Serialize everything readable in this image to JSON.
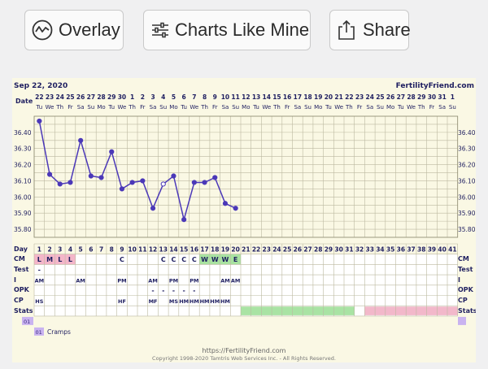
{
  "toolbar": {
    "overlay_label": "Overlay",
    "charts_like_mine_label": "Charts Like Mine",
    "share_label": "Share"
  },
  "header": {
    "start_date": "Sep 22, 2020",
    "site": "FertilityFriend.com"
  },
  "row_labels": {
    "date": "Date",
    "day": "Day",
    "cm": "CM",
    "test": "Test",
    "i": "I",
    "opk": "OPK",
    "cp": "CP",
    "stats": "Stats"
  },
  "dates": [
    "22",
    "23",
    "24",
    "25",
    "26",
    "27",
    "28",
    "29",
    "30",
    "1",
    "2",
    "3",
    "4",
    "5",
    "6",
    "7",
    "8",
    "9",
    "10",
    "11",
    "12",
    "13",
    "14",
    "15",
    "16",
    "17",
    "18",
    "19",
    "20",
    "21",
    "22",
    "23",
    "24",
    "25",
    "26",
    "27",
    "28",
    "29",
    "30",
    "31",
    "1"
  ],
  "weekdays": [
    "Tu",
    "We",
    "Th",
    "Fr",
    "Sa",
    "Su",
    "Mo",
    "Tu",
    "We",
    "Th",
    "Fr",
    "Sa",
    "Su",
    "Mo",
    "Tu",
    "We",
    "Th",
    "Fr",
    "Sa",
    "Su",
    "Mo",
    "Tu",
    "We",
    "Th",
    "Fr",
    "Sa",
    "Su",
    "Mo",
    "Tu",
    "We",
    "Th",
    "Fr",
    "Sa",
    "Su",
    "Mo",
    "Tu",
    "We",
    "Th",
    "Fr",
    "Sa",
    "Su"
  ],
  "y_ticks": [
    "36.40",
    "36.30",
    "36.20",
    "36.10",
    "36.00",
    "35.90",
    "35.80"
  ],
  "chart_data": {
    "type": "line",
    "x": [
      1,
      2,
      3,
      4,
      5,
      6,
      7,
      8,
      9,
      10,
      11,
      12,
      13,
      14,
      15,
      16,
      17,
      18,
      19,
      20
    ],
    "values": [
      36.47,
      36.14,
      36.08,
      36.09,
      36.35,
      36.13,
      36.12,
      36.28,
      36.05,
      36.09,
      36.1,
      35.93,
      36.08,
      36.13,
      35.86,
      36.09,
      36.09,
      36.12,
      35.96,
      35.93
    ],
    "open_points": [
      13
    ],
    "ylim": [
      35.75,
      36.5
    ],
    "ylabel": "",
    "xlabel": "Day",
    "line_color": "#4b38b8"
  },
  "cm_row": [
    {
      "day": 1,
      "text": "L",
      "color": "#f4b6c9"
    },
    {
      "day": 2,
      "text": "M",
      "color": "#f4b6c9"
    },
    {
      "day": 3,
      "text": "L",
      "color": "#f4b6c9"
    },
    {
      "day": 4,
      "text": "L",
      "color": "#f4b6c9"
    },
    {
      "day": 9,
      "text": "C",
      "color": ""
    },
    {
      "day": 13,
      "text": "C",
      "color": ""
    },
    {
      "day": 14,
      "text": "C",
      "color": ""
    },
    {
      "day": 15,
      "text": "C",
      "color": ""
    },
    {
      "day": 16,
      "text": "C",
      "color": ""
    },
    {
      "day": 17,
      "text": "W",
      "color": "#a8e2a0"
    },
    {
      "day": 18,
      "text": "W",
      "color": "#a8e2a0"
    },
    {
      "day": 19,
      "text": "W",
      "color": "#a8e2a0"
    },
    {
      "day": 20,
      "text": "E",
      "color": "#a8e2a0"
    }
  ],
  "test_row": [
    {
      "day": 1,
      "text": "-"
    }
  ],
  "i_row": [
    {
      "day": 1,
      "text": "AM"
    },
    {
      "day": 5,
      "text": "AM"
    },
    {
      "day": 9,
      "text": "PM"
    },
    {
      "day": 12,
      "text": "AM"
    },
    {
      "day": 14,
      "text": "PM"
    },
    {
      "day": 16,
      "text": "PM"
    },
    {
      "day": 19,
      "text": "AM"
    },
    {
      "day": 20,
      "text": "AM"
    }
  ],
  "opk_row": [
    {
      "day": 12,
      "text": "-"
    },
    {
      "day": 13,
      "text": "-"
    },
    {
      "day": 14,
      "text": "-"
    },
    {
      "day": 15,
      "text": "-"
    },
    {
      "day": 16,
      "text": "-"
    }
  ],
  "cp_row": [
    {
      "day": 1,
      "text": "HS"
    },
    {
      "day": 9,
      "text": "HF"
    },
    {
      "day": 12,
      "text": "MF"
    },
    {
      "day": 14,
      "text": "MS"
    },
    {
      "day": 15,
      "text": "HM"
    },
    {
      "day": 16,
      "text": "HM"
    },
    {
      "day": 17,
      "text": "HM"
    },
    {
      "day": 18,
      "text": "HM"
    },
    {
      "day": 19,
      "text": "HM"
    }
  ],
  "stats_bars": [
    {
      "from": 21,
      "to": 31,
      "color": "#a9e3a4"
    },
    {
      "from": 33,
      "to": 41,
      "color": "#f2b8ca"
    }
  ],
  "notes": [
    {
      "day": 1,
      "badge": "01",
      "text": "Cramps"
    }
  ],
  "footer": {
    "url": "https://FertilityFriend.com",
    "copyright": "Copyright 1998-2020 Tamtris Web Services Inc. - All Rights Reserved."
  }
}
